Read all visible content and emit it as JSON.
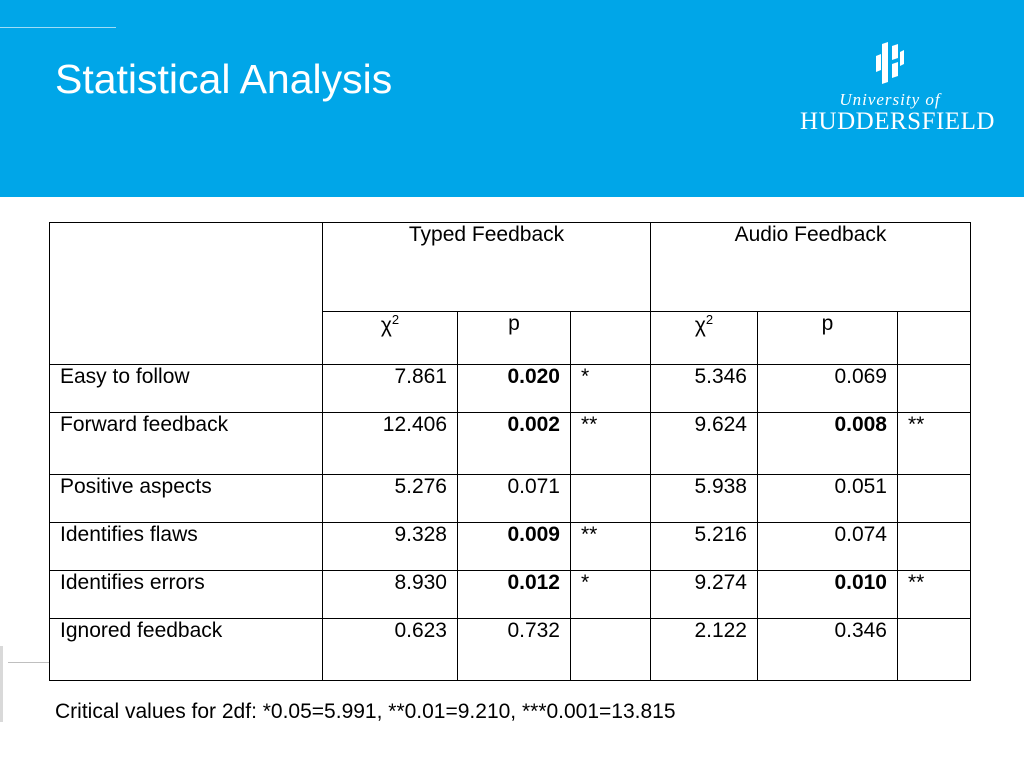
{
  "slide": {
    "title": "Statistical Analysis",
    "accent_color": "#00a6e8"
  },
  "logo": {
    "line1": "University of",
    "line2": "HUDDERSFIELD",
    "icon": "huddersfield-crest-icon"
  },
  "table": {
    "groups": [
      "Typed  Feedback",
      "Audio Feedback"
    ],
    "sub_headers": {
      "chi": "χ",
      "chi_sup": "2",
      "p": "p"
    },
    "rows": [
      {
        "label": "Easy to follow",
        "typed_chi2": "7.861",
        "typed_p": "0.020",
        "typed_p_bold": true,
        "typed_sig": "*",
        "audio_chi2": "5.346",
        "audio_p": "0.069",
        "audio_p_bold": false,
        "audio_sig": ""
      },
      {
        "label": "Forward feedback",
        "typed_chi2": "12.406",
        "typed_p": "0.002",
        "typed_p_bold": true,
        "typed_sig": "**",
        "audio_chi2": "9.624",
        "audio_p": "0.008",
        "audio_p_bold": true,
        "audio_sig": "**"
      },
      {
        "label": "Positive aspects",
        "typed_chi2": "5.276",
        "typed_p": "0.071",
        "typed_p_bold": false,
        "typed_sig": "",
        "audio_chi2": "5.938",
        "audio_p": "0.051",
        "audio_p_bold": false,
        "audio_sig": ""
      },
      {
        "label": "Identifies flaws",
        "typed_chi2": "9.328",
        "typed_p": "0.009",
        "typed_p_bold": true,
        "typed_sig": "**",
        "audio_chi2": "5.216",
        "audio_p": "0.074",
        "audio_p_bold": false,
        "audio_sig": ""
      },
      {
        "label": "Identifies errors",
        "typed_chi2": "8.930",
        "typed_p": "0.012",
        "typed_p_bold": true,
        "typed_sig": "*",
        "audio_chi2": "9.274",
        "audio_p": "0.010",
        "audio_p_bold": true,
        "audio_sig": "**"
      },
      {
        "label": "Ignored feedback",
        "typed_chi2": "0.623",
        "typed_p": "0.732",
        "typed_p_bold": false,
        "typed_sig": "",
        "audio_chi2": "2.122",
        "audio_p": "0.346",
        "audio_p_bold": false,
        "audio_sig": ""
      }
    ]
  },
  "footnote": "Critical values for 2df:  *0.05=5.991, **0.01=9.210, ***0.001=13.815"
}
